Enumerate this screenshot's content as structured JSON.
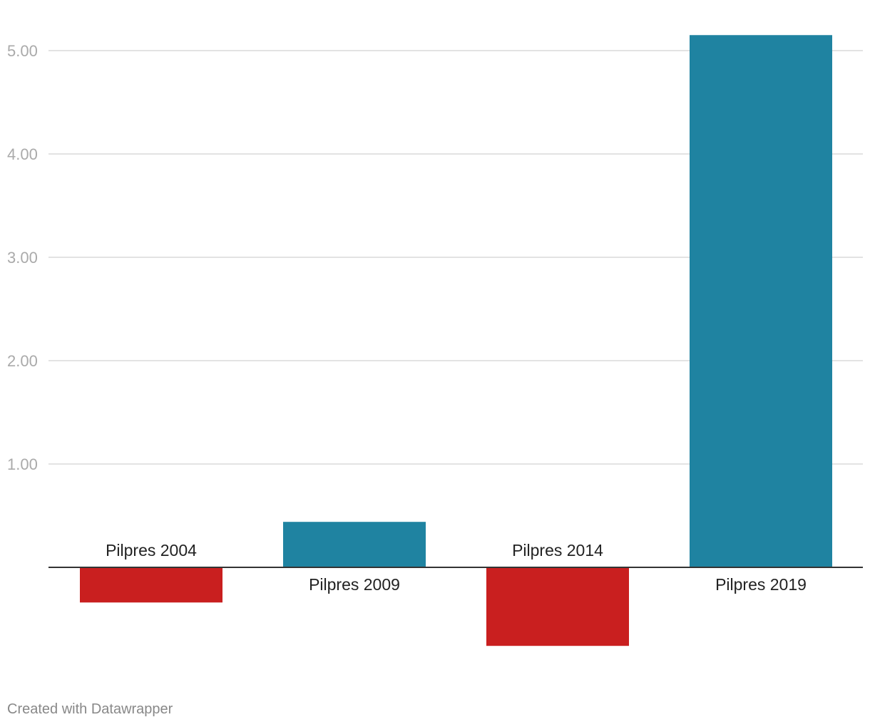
{
  "chart_data": {
    "type": "bar",
    "title": "",
    "xlabel": "",
    "ylabel": "",
    "categories": [
      "Pilpres 2004",
      "Pilpres 2009",
      "Pilpres 2014",
      "Pilpres 2019"
    ],
    "values": [
      -0.34,
      0.44,
      -0.76,
      5.15
    ],
    "ylim": [
      -1.0,
      5.15
    ],
    "yticks": [
      1.0,
      2.0,
      3.0,
      4.0,
      5.0
    ],
    "ytick_labels": [
      "1.00",
      "2.00",
      "3.00",
      "4.00",
      "5.00"
    ],
    "grid": true,
    "legend": "none",
    "colors": {
      "positive": "#1f83a1",
      "negative": "#c91f1f",
      "gridline": "#e3e3e3",
      "baseline": "#333333",
      "tick_text": "#aaaaaa",
      "category_text": "#222222"
    }
  },
  "footer": {
    "credit": "Created with Datawrapper"
  }
}
